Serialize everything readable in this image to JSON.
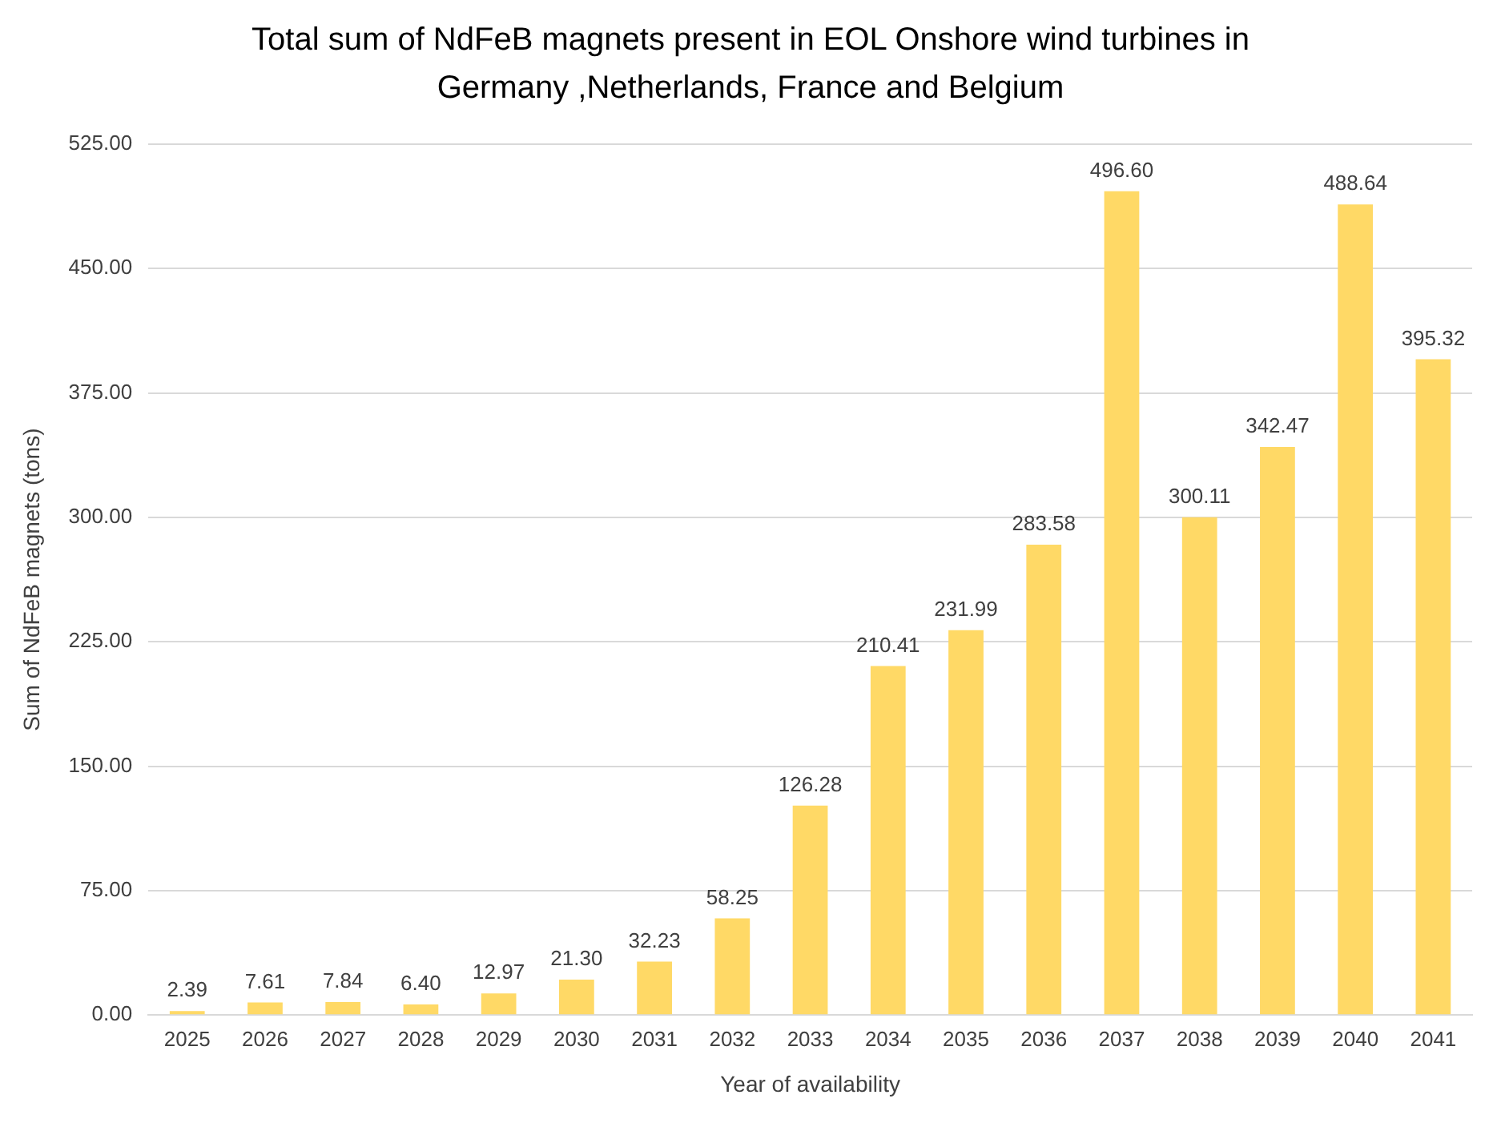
{
  "chart_data": {
    "type": "bar",
    "title": "Total sum of NdFeB magnets present in EOL Onshore wind turbines in Germany ,Netherlands, France and Belgium",
    "xlabel": "Year of availability",
    "ylabel": "Sum of NdFeB magnets (tons)",
    "categories": [
      "2025",
      "2026",
      "2027",
      "2028",
      "2029",
      "2030",
      "2031",
      "2032",
      "2033",
      "2034",
      "2035",
      "2036",
      "2037",
      "2038",
      "2039",
      "2040",
      "2041"
    ],
    "values": [
      2.39,
      7.61,
      7.84,
      6.4,
      12.97,
      21.3,
      32.23,
      58.25,
      126.28,
      210.41,
      231.99,
      283.58,
      496.6,
      300.11,
      342.47,
      488.64,
      395.32
    ],
    "value_labels": [
      "2.39",
      "7.61",
      "7.84",
      "6.40",
      "12.97",
      "21.30",
      "32.23",
      "58.25",
      "126.28",
      "210.41",
      "231.99",
      "283.58",
      "496.60",
      "300.11",
      "342.47",
      "488.64",
      "395.32"
    ],
    "color": "#ffd966",
    "ylim": [
      0,
      525
    ],
    "yticks": [
      {
        "value": 0,
        "label": "0.00"
      },
      {
        "value": 75,
        "label": "75.00"
      },
      {
        "value": 150,
        "label": "150.00"
      },
      {
        "value": 225,
        "label": "225.00"
      },
      {
        "value": 300,
        "label": "300.00"
      },
      {
        "value": 375,
        "label": "375.00"
      },
      {
        "value": 450,
        "label": "450.00"
      },
      {
        "value": 525,
        "label": "525.00"
      }
    ],
    "grid": "y",
    "legend": false
  }
}
